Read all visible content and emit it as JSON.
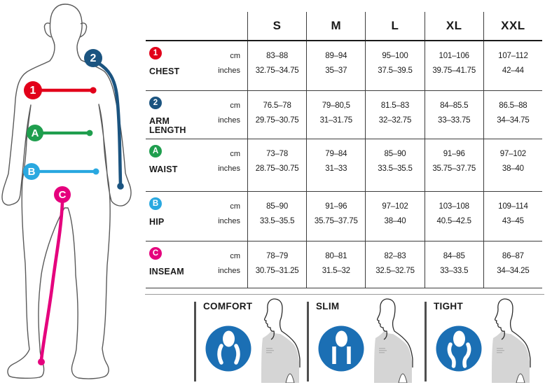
{
  "chart_data": {
    "type": "table",
    "title": "Apparel size chart with body measurement points",
    "columns": [
      "S",
      "M",
      "L",
      "XL",
      "XXL"
    ],
    "units": [
      "cm",
      "inches"
    ],
    "rows": [
      {
        "marker": "1",
        "label": "CHEST",
        "color": "#e2001a",
        "cm": [
          "83–88",
          "89–94",
          "95–100",
          "101–106",
          "107–112"
        ],
        "inches": [
          "32.75–34.75",
          "35–37",
          "37.5–39.5",
          "39.75–41.75",
          "42–44"
        ]
      },
      {
        "marker": "2",
        "label": "ARM LENGTH",
        "color": "#1b5480",
        "cm": [
          "76.5–78",
          "79–80,5",
          "81.5–83",
          "84–85.5",
          "86.5–88"
        ],
        "inches": [
          "29.75–30.75",
          "31–31.75",
          "32–32.75",
          "33–33.75",
          "34–34.75"
        ]
      },
      {
        "marker": "A",
        "label": "WAIST",
        "color": "#1f9e4e",
        "cm": [
          "73–78",
          "79–84",
          "85–90",
          "91–96",
          "97–102"
        ],
        "inches": [
          "28.75–30.75",
          "31–33",
          "33.5–35.5",
          "35.75–37.75",
          "38–40"
        ]
      },
      {
        "marker": "B",
        "label": "HIP",
        "color": "#29a8e0",
        "cm": [
          "85–90",
          "91–96",
          "97–102",
          "103–108",
          "109–114"
        ],
        "inches": [
          "33.5–35.5",
          "35.75–37.75",
          "38–40",
          "40.5–42.5",
          "43–45"
        ]
      },
      {
        "marker": "C",
        "label": "INSEAM",
        "color": "#e5007d",
        "cm": [
          "78–79",
          "80–81",
          "82–83",
          "84–85",
          "86–87"
        ],
        "inches": [
          "30.75–31.25",
          "31.5–32",
          "32.5–32.75",
          "33–33.5",
          "34–34.25"
        ]
      }
    ]
  },
  "fits": [
    {
      "label": "COMFORT",
      "icon": "comfort-fit-icon"
    },
    {
      "label": "SLIM",
      "icon": "slim-fit-icon"
    },
    {
      "label": "TIGHT",
      "icon": "tight-fit-icon"
    }
  ],
  "colors": {
    "fit_icon_blue": "#1b6fb4",
    "table_line": "#3c3c3c",
    "torso_gray": "#d5d5d5",
    "silhouette_outline": "#5a5a5a"
  }
}
